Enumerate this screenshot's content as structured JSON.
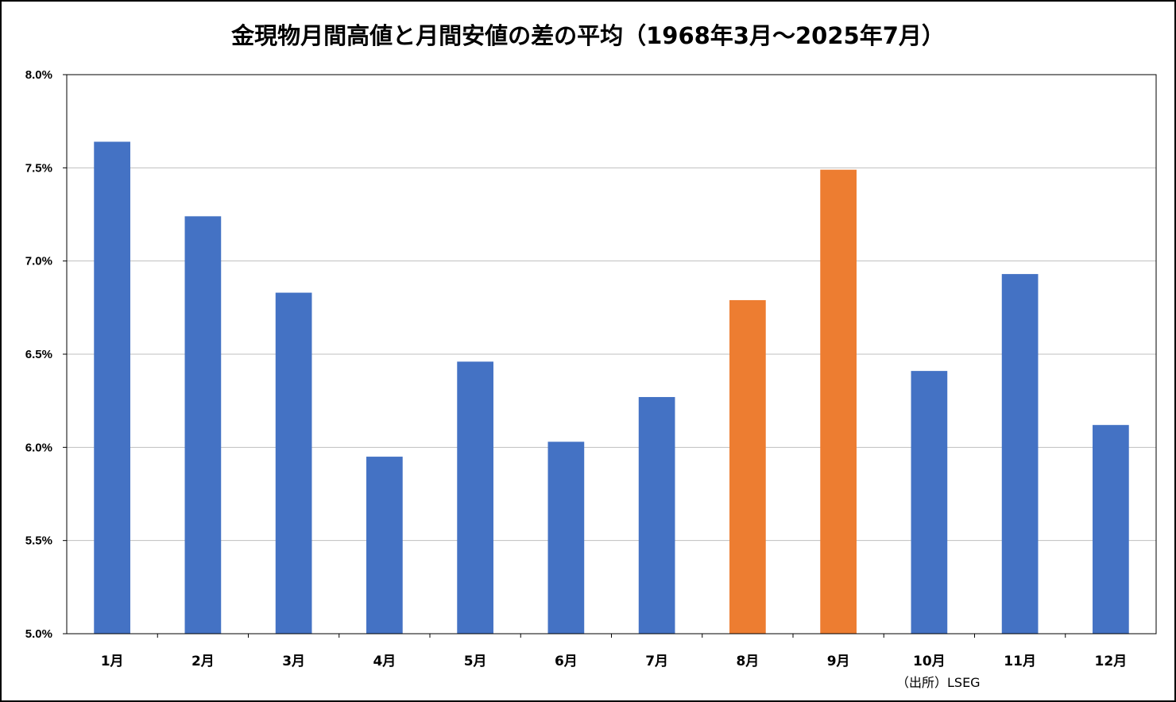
{
  "chart_data": {
    "type": "bar",
    "title": "金現物月間高値と月間安値の差の平均（1968年3月～2025年7月）",
    "categories": [
      "1月",
      "2月",
      "3月",
      "4月",
      "5月",
      "6月",
      "7月",
      "8月",
      "9月",
      "10月",
      "11月",
      "12月"
    ],
    "values": [
      7.64,
      7.24,
      6.83,
      5.95,
      6.46,
      6.03,
      6.27,
      6.79,
      7.49,
      6.41,
      6.93,
      6.12
    ],
    "unit": "%",
    "ylim": [
      5.0,
      8.0
    ],
    "yticks": [
      "5.0%",
      "5.5%",
      "6.0%",
      "6.5%",
      "7.0%",
      "7.5%",
      "8.0%"
    ],
    "grid": true,
    "colors": {
      "default": "#4472c4",
      "highlight": "#ed7d31",
      "highlighted_categories": [
        "8月",
        "9月"
      ]
    },
    "source": "（出所）LSEG"
  }
}
